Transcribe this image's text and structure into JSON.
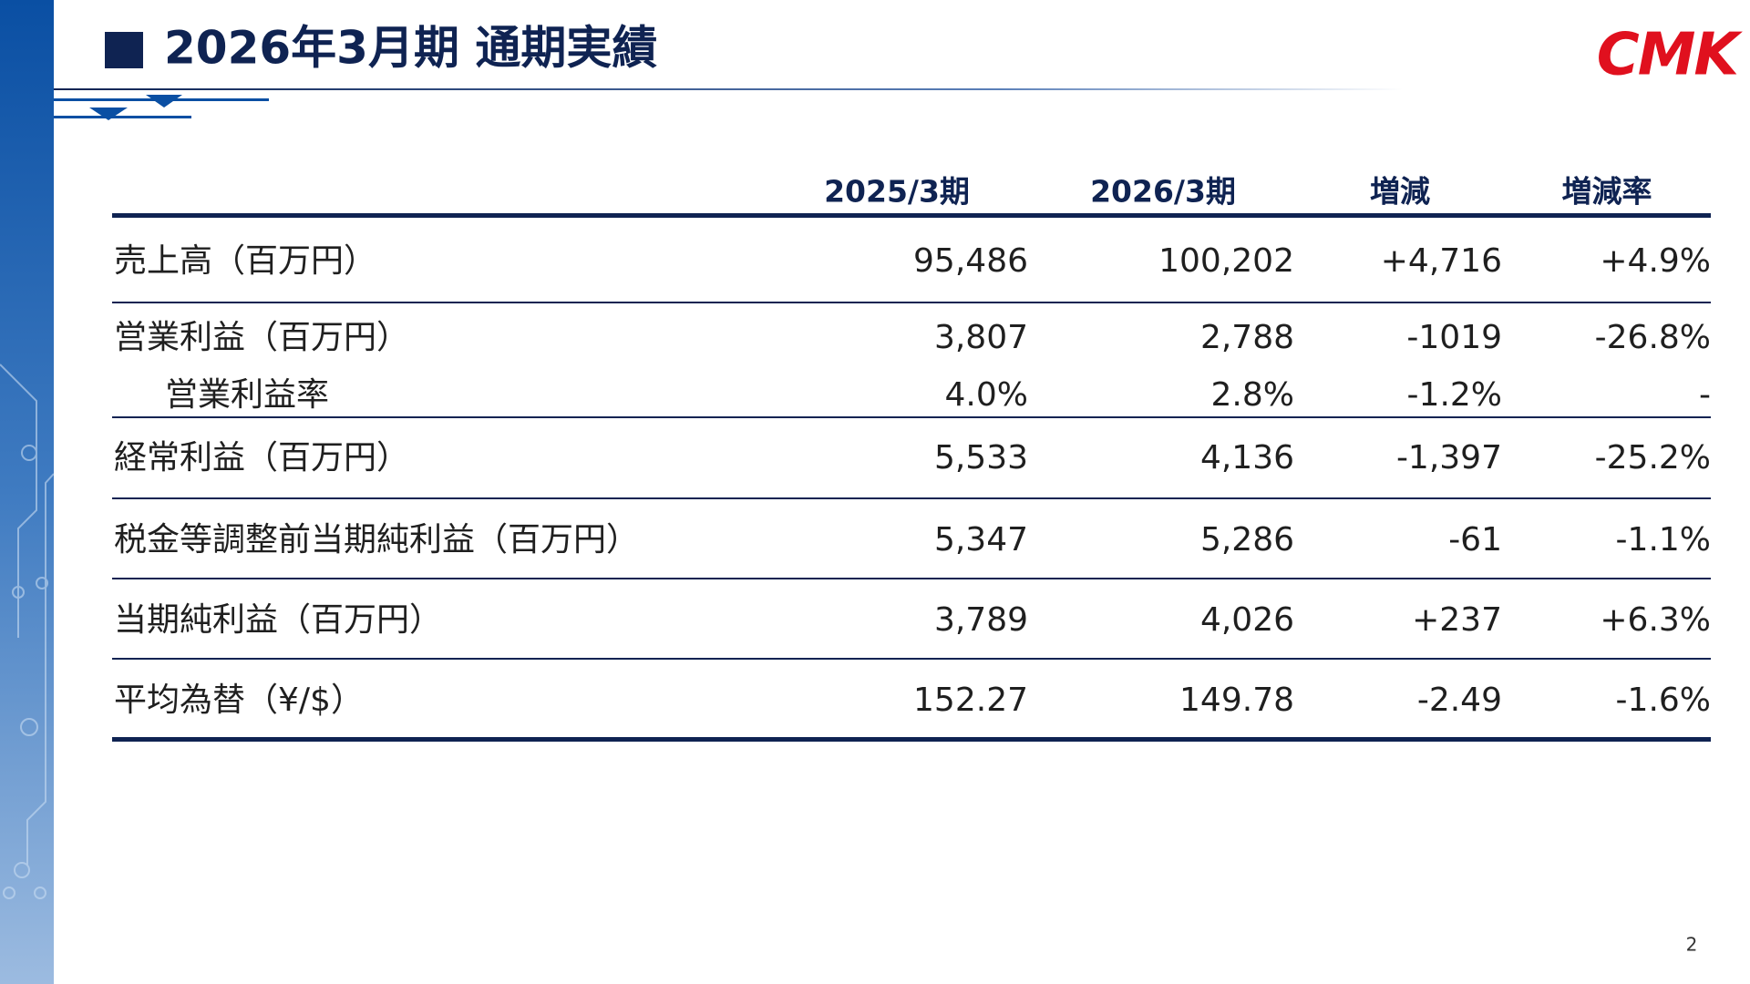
{
  "header": {
    "title": "2026年3月期 通期実績",
    "logo": "CMK"
  },
  "table": {
    "columns": [
      "2025/3期",
      "2026/3期",
      "増減",
      "増減率"
    ],
    "rows": [
      [
        "売上高（百万円）",
        "95,486",
        "100,202",
        "+4,716",
        "+4.9%"
      ],
      [
        "営業利益（百万円）",
        "3,807",
        "2,788",
        "-1019",
        "-26.8%"
      ],
      [
        "営業利益率",
        "4.0%",
        "2.8%",
        "-1.2%",
        "-"
      ],
      [
        "経常利益（百万円）",
        "5,533",
        "4,136",
        "-1,397",
        "-25.2%"
      ],
      [
        "税金等調整前当期純利益（百万円）",
        "5,347",
        "5,286",
        "-61",
        "-1.1%"
      ],
      [
        "当期純利益（百万円）",
        "3,789",
        "4,026",
        "+237",
        "+6.3%"
      ],
      [
        "平均為替（¥/$）",
        "152.27",
        "149.78",
        "-2.49",
        "-1.6%"
      ]
    ]
  },
  "footer": {
    "page": "2"
  }
}
